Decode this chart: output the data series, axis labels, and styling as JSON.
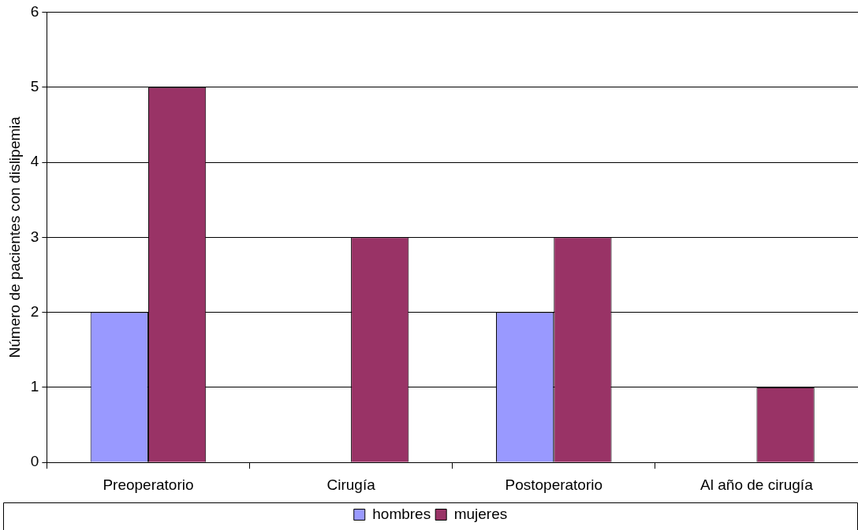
{
  "chart_data": {
    "type": "bar",
    "categories": [
      "Preoperatorio",
      "Cirugía",
      "Postoperatorio",
      "Al año de cirugía"
    ],
    "series": [
      {
        "name": "hombres",
        "color": "#9999ff",
        "values": [
          2,
          0,
          2,
          0
        ]
      },
      {
        "name": "mujeres",
        "color": "#993366",
        "values": [
          5,
          3,
          3,
          1
        ]
      }
    ],
    "ylabel": "Número de pacientes con dislipemia",
    "ylim": [
      0,
      6
    ],
    "yticks": [
      0,
      1,
      2,
      3,
      4,
      5,
      6
    ],
    "grid": "y",
    "legend": "bottom"
  }
}
